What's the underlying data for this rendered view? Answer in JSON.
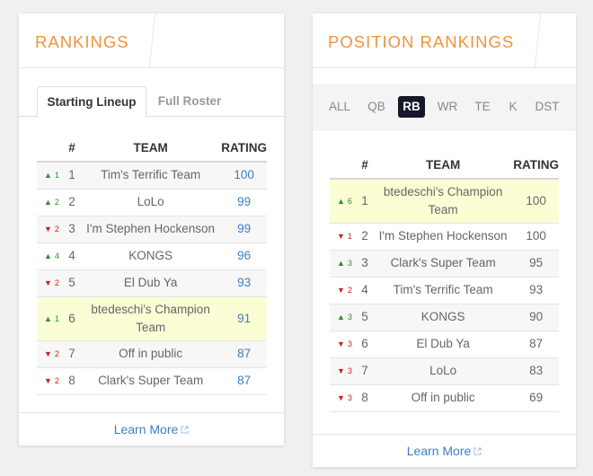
{
  "rankings": {
    "title": "RANKINGS",
    "tabs": [
      {
        "label": "Starting Lineup",
        "active": true
      },
      {
        "label": "Full Roster",
        "active": false
      }
    ],
    "columns": {
      "rank": "#",
      "team": "TEAM",
      "rating": "RATING"
    },
    "rows": [
      {
        "dir": "up",
        "arrow": "▲",
        "change": "1",
        "rank": "1",
        "team": "Tim's Terrific Team",
        "rating": "100"
      },
      {
        "dir": "up",
        "arrow": "▲",
        "change": "2",
        "rank": "2",
        "team": "LoLo",
        "rating": "99"
      },
      {
        "dir": "down",
        "arrow": "▼",
        "change": "2",
        "rank": "3",
        "team": "I'm Stephen Hockenson",
        "rating": "99"
      },
      {
        "dir": "up",
        "arrow": "▲",
        "change": "4",
        "rank": "4",
        "team": "KONGS",
        "rating": "96"
      },
      {
        "dir": "down",
        "arrow": "▼",
        "change": "2",
        "rank": "5",
        "team": "El Dub Ya",
        "rating": "93"
      },
      {
        "dir": "up",
        "arrow": "▲",
        "change": "1",
        "rank": "6",
        "team": "btedeschi's Champion Team",
        "rating": "91"
      },
      {
        "dir": "down",
        "arrow": "▼",
        "change": "2",
        "rank": "7",
        "team": "Off in public",
        "rating": "87"
      },
      {
        "dir": "down",
        "arrow": "▼",
        "change": "2",
        "rank": "8",
        "team": "Clark's Super Team",
        "rating": "87"
      }
    ],
    "footer_link": "Learn More"
  },
  "position_rankings": {
    "title": "POSITION RANKINGS",
    "positions": [
      {
        "label": "ALL",
        "active": false
      },
      {
        "label": "QB",
        "active": false
      },
      {
        "label": "RB",
        "active": true
      },
      {
        "label": "WR",
        "active": false
      },
      {
        "label": "TE",
        "active": false
      },
      {
        "label": "K",
        "active": false
      },
      {
        "label": "DST",
        "active": false
      }
    ],
    "columns": {
      "rank": "#",
      "team": "TEAM",
      "rating": "RATING"
    },
    "rows": [
      {
        "dir": "up",
        "arrow": "▲",
        "change": "6",
        "rank": "1",
        "team": "btedeschi's Champion Team",
        "rating": "100"
      },
      {
        "dir": "down",
        "arrow": "▼",
        "change": "1",
        "rank": "2",
        "team": "I'm Stephen Hockenson",
        "rating": "100"
      },
      {
        "dir": "up",
        "arrow": "▲",
        "change": "3",
        "rank": "3",
        "team": "Clark's Super Team",
        "rating": "95"
      },
      {
        "dir": "down",
        "arrow": "▼",
        "change": "2",
        "rank": "4",
        "team": "Tim's Terrific Team",
        "rating": "93"
      },
      {
        "dir": "up",
        "arrow": "▲",
        "change": "3",
        "rank": "5",
        "team": "KONGS",
        "rating": "90"
      },
      {
        "dir": "down",
        "arrow": "▼",
        "change": "3",
        "rank": "6",
        "team": "El Dub Ya",
        "rating": "87"
      },
      {
        "dir": "down",
        "arrow": "▼",
        "change": "3",
        "rank": "7",
        "team": "LoLo",
        "rating": "83"
      },
      {
        "dir": "down",
        "arrow": "▼",
        "change": "3",
        "rank": "8",
        "team": "Off in public",
        "rating": "69"
      }
    ],
    "footer_link": "Learn More"
  },
  "colors": {
    "title_accent": "#f0943c",
    "link": "#3a7fc6",
    "up": "#2e8b2e",
    "down": "#cc2222",
    "highlight_row": "#fbfdd4",
    "active_position_bg": "#14182a"
  },
  "icons": {
    "up": "up-arrow-icon",
    "down": "down-arrow-icon",
    "external": "external-link-icon"
  }
}
